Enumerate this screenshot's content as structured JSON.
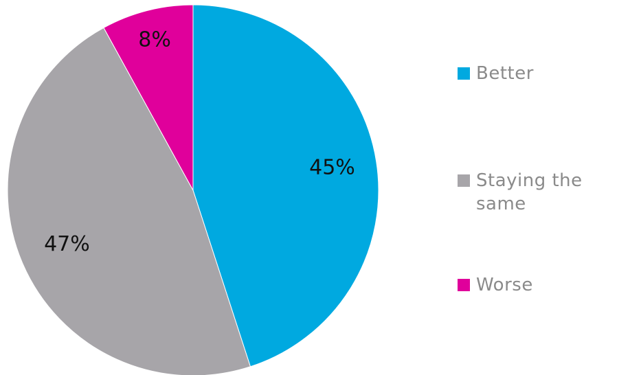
{
  "chart_data": {
    "type": "pie",
    "categories": [
      "Better",
      "Staying the same",
      "Worse"
    ],
    "values": [
      45,
      47,
      8
    ],
    "labels": [
      "45%",
      "47%",
      "8%"
    ],
    "colors": [
      "#00a9e0",
      "#a7a5a9",
      "#e0009b"
    ],
    "legend_position": "right",
    "title": ""
  }
}
